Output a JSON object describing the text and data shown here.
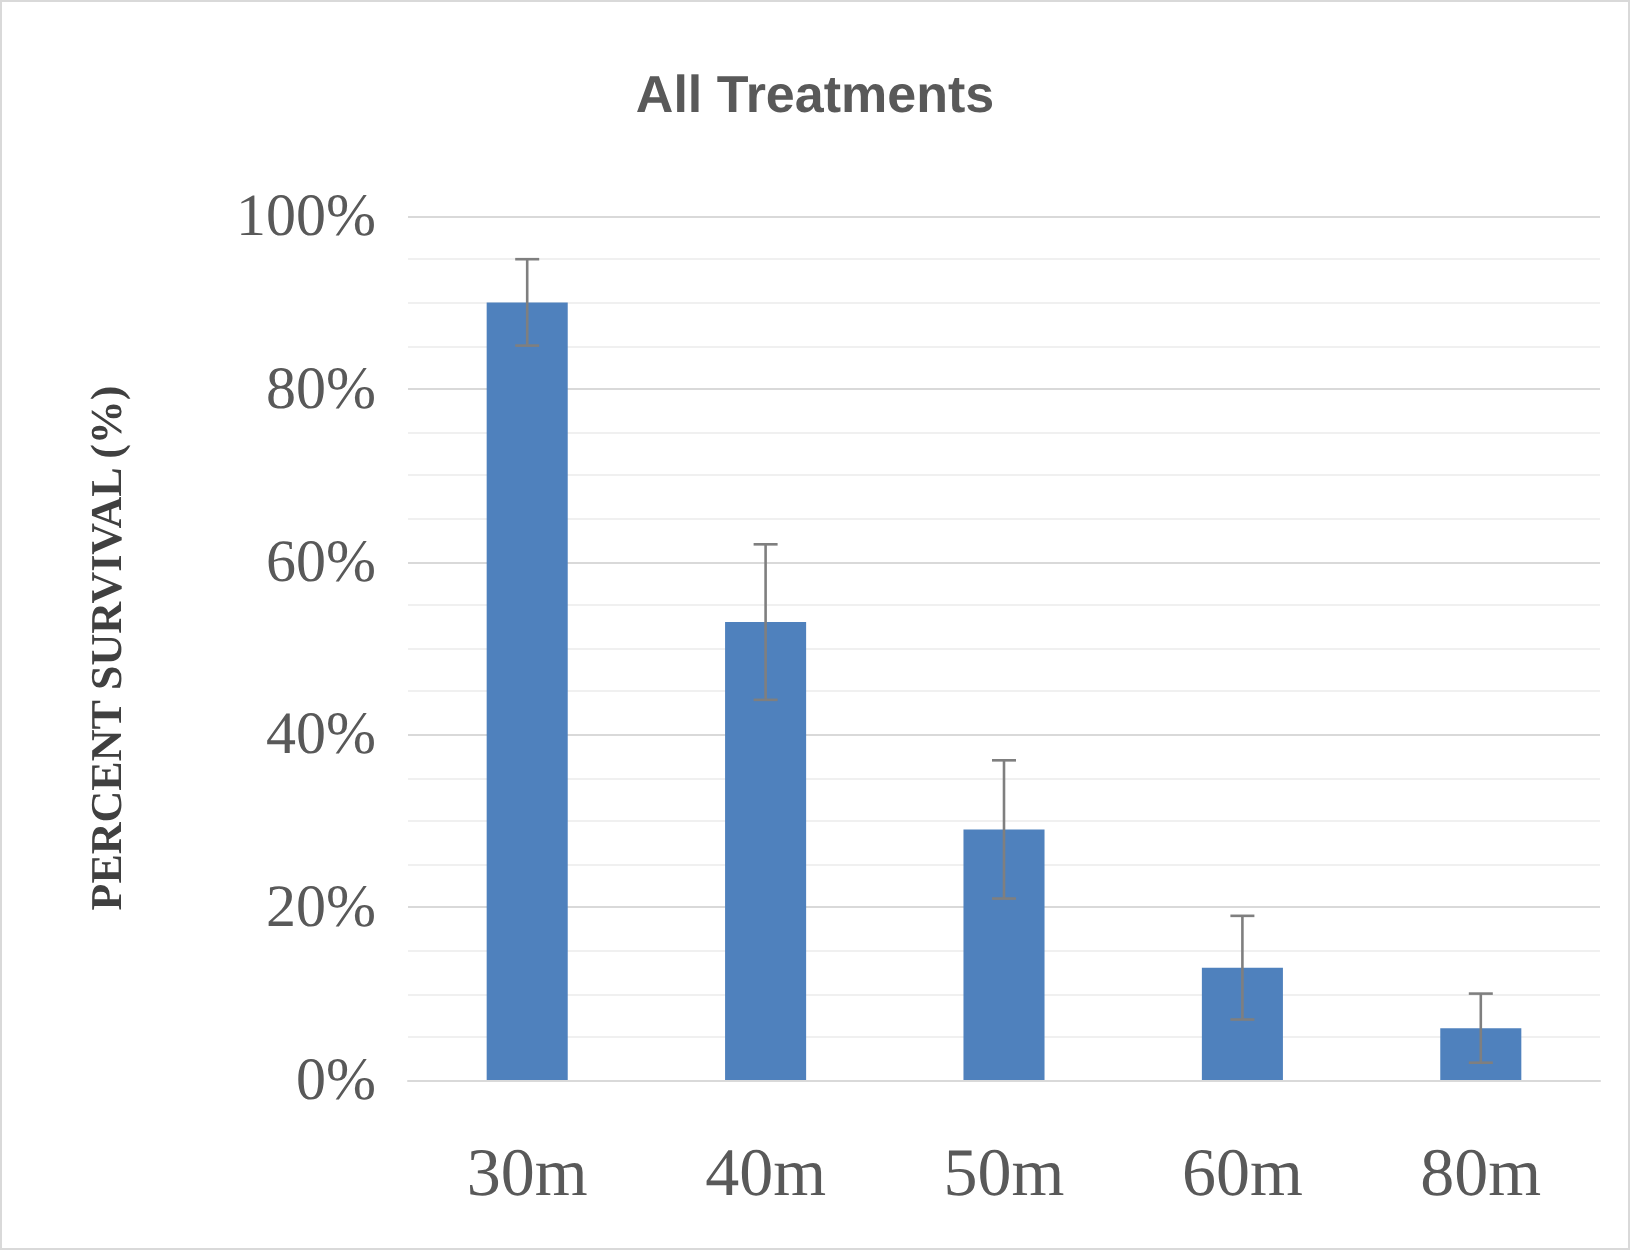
{
  "chart_data": {
    "type": "bar",
    "title": "All Treatments",
    "ylabel": "PERCENT SURVIVAL (%)",
    "categories": [
      "30m",
      "40m",
      "50m",
      "60m",
      "80m"
    ],
    "series": [
      {
        "color": "#4f81bd",
        "values": [
          90,
          53,
          29,
          13,
          6
        ],
        "errors": [
          [
            85,
            95
          ],
          [
            44,
            62
          ],
          [
            21,
            37
          ],
          [
            7,
            19
          ],
          [
            2,
            10
          ]
        ]
      }
    ],
    "ylim": [
      0,
      100
    ],
    "yticks": [
      {
        "value": 0,
        "label": "0%"
      },
      {
        "value": 20,
        "label": "20%"
      },
      {
        "value": 40,
        "label": "40%"
      },
      {
        "value": 60,
        "label": "60%"
      },
      {
        "value": 80,
        "label": "80%"
      },
      {
        "value": 100,
        "label": "100%"
      }
    ],
    "grid": "y"
  }
}
